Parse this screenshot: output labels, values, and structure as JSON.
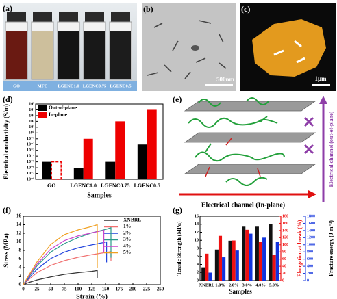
{
  "labels": {
    "a": "(a)",
    "b": "(b)",
    "c": "(c)",
    "d": "(d)",
    "e": "(e)",
    "f": "(f)",
    "g": "(g)"
  },
  "photo": {
    "vials": [
      "GO",
      "MFC",
      "LGENC1.0",
      "LGENC0.75",
      "LGENC0.5"
    ]
  },
  "sem": {
    "scale_bar": "500nm"
  },
  "afm": {
    "scale_bar": "1μm"
  },
  "diagram": {
    "in_plane": "Electrical channel (In-plane)",
    "out_of_plane": "Electrical channel (out-of-plane)"
  },
  "chart_data": [
    {
      "type": "bar",
      "log_scale": true,
      "ylabel": "Electrical conductivity (S/m)",
      "xlabel": "Samples",
      "legend": "top-left",
      "categories": [
        "GO",
        "LGENC1.0",
        "LGENC0.75",
        "LGENC0.5"
      ],
      "series": [
        {
          "name": "Out-of-plane",
          "color": "#000000",
          "values": [
            1e-05,
            1e-06,
            1e-05,
            0.01
          ]
        },
        {
          "name": "In-plane",
          "color": "#ee0000",
          "values": [
            1e-05,
            0.1,
            100,
            10000
          ],
          "dashed": [
            true,
            false,
            false,
            false
          ]
        }
      ],
      "ylim": [
        1e-08,
        100000.0
      ],
      "yticks": [
        {
          "value": 1e-08,
          "label": "10⁻⁸"
        },
        {
          "value": 1e-07,
          "label": "10⁻⁷"
        },
        {
          "value": 1e-06,
          "label": "10⁻⁶"
        },
        {
          "value": 1e-05,
          "label": "10⁻⁵"
        },
        {
          "value": 0.0001,
          "label": "10⁻⁴"
        },
        {
          "value": 0.001,
          "label": "10⁻³"
        },
        {
          "value": 0.01,
          "label": "10⁻²"
        },
        {
          "value": 0.1,
          "label": "10⁻¹"
        },
        {
          "value": 1,
          "label": "10⁰"
        },
        {
          "value": 10,
          "label": "10¹"
        },
        {
          "value": 100,
          "label": "10²"
        },
        {
          "value": 1000,
          "label": "10³"
        },
        {
          "value": 10000,
          "label": "10⁴"
        },
        {
          "value": 100000,
          "label": "10⁵"
        }
      ]
    },
    {
      "type": "line",
      "xlabel": "Strain (%)",
      "ylabel": "Stress (MPa)",
      "legend": "top-right",
      "xlim": [
        0,
        250
      ],
      "xticks": [
        0,
        25,
        50,
        75,
        100,
        125,
        150,
        175,
        200,
        225,
        250
      ],
      "ylim": [
        0,
        16
      ],
      "yticks": [
        0,
        2,
        4,
        6,
        8,
        10,
        12,
        14,
        16
      ],
      "series": [
        {
          "name": "XNBRL",
          "color": "#333333",
          "x": [
            0,
            10,
            25,
            50,
            75,
            100,
            125,
            135,
            135
          ],
          "values": [
            0,
            0.5,
            1.1,
            1.8,
            2.4,
            2.8,
            3.1,
            3.3,
            1.5
          ]
        },
        {
          "name": "1%",
          "color": "#f07070",
          "x": [
            0,
            10,
            25,
            50,
            75,
            100,
            125,
            150,
            160,
            160
          ],
          "values": [
            0,
            1.2,
            2.8,
            4.5,
            5.6,
            6.4,
            7.0,
            7.5,
            7.7,
            5.6
          ]
        },
        {
          "name": "2%",
          "color": "#2244dd",
          "x": [
            0,
            10,
            25,
            50,
            75,
            100,
            125,
            145,
            152,
            152
          ],
          "values": [
            0,
            1.5,
            3.6,
            6.1,
            7.6,
            8.6,
            9.3,
            9.8,
            10,
            5.2
          ]
        },
        {
          "name": "3%",
          "color": "#2a9a8a",
          "x": [
            0,
            10,
            25,
            50,
            75,
            100,
            125,
            150,
            160,
            160
          ],
          "values": [
            0,
            1.8,
            4.4,
            7.6,
            9.6,
            11,
            12.1,
            12.9,
            13.3,
            6.3
          ]
        },
        {
          "name": "4%",
          "color": "#cc44cc",
          "x": [
            0,
            10,
            25,
            50,
            75,
            100,
            125,
            140,
            147,
            147
          ],
          "values": [
            0,
            2.0,
            4.8,
            8.3,
            10.3,
            11.4,
            12.1,
            12.5,
            12.7,
            7.5
          ]
        },
        {
          "name": "5%",
          "color": "#f0a020",
          "x": [
            0,
            10,
            25,
            50,
            75,
            100,
            125,
            135,
            135
          ],
          "values": [
            0,
            2.2,
            5.3,
            9.4,
            11.7,
            12.8,
            13.6,
            14,
            4
          ]
        }
      ]
    },
    {
      "type": "bar",
      "xlabel": "Samples",
      "ylabel": "Tensile Strength (MPa)",
      "y2label": "Elongation at break (%)",
      "y3label": "Fracture energy (J m⁻³)",
      "categories": [
        "XNBRL",
        "1.0%",
        "2.0%",
        "3.0%",
        "4.0%",
        "5.0%"
      ],
      "ylim": [
        0,
        16
      ],
      "yticks": [
        0,
        2,
        4,
        6,
        8,
        10,
        12,
        14,
        16
      ],
      "y2lim": [
        0,
        180
      ],
      "y2ticks": [
        0,
        20,
        40,
        60,
        80,
        100,
        120,
        140,
        160,
        180
      ],
      "y3lim": [
        0,
        1800
      ],
      "y3ticks": [
        0,
        200,
        400,
        600,
        800,
        1000,
        1200,
        1400,
        1600,
        1800
      ],
      "series": [
        {
          "name": "Tensile Strength",
          "color": "#111111",
          "values": [
            3.3,
            7.7,
            9.9,
            13.4,
            13.4,
            14
          ]
        },
        {
          "name": "Elongation at break",
          "color": "#ee1111",
          "axis": "y2",
          "values": [
            75,
            125,
            112,
            142,
            108,
            72
          ]
        },
        {
          "name": "Fracture energy",
          "color": "#1133dd",
          "axis": "y3",
          "values": [
            220,
            650,
            840,
            1310,
            1200,
            1090
          ]
        }
      ]
    }
  ]
}
